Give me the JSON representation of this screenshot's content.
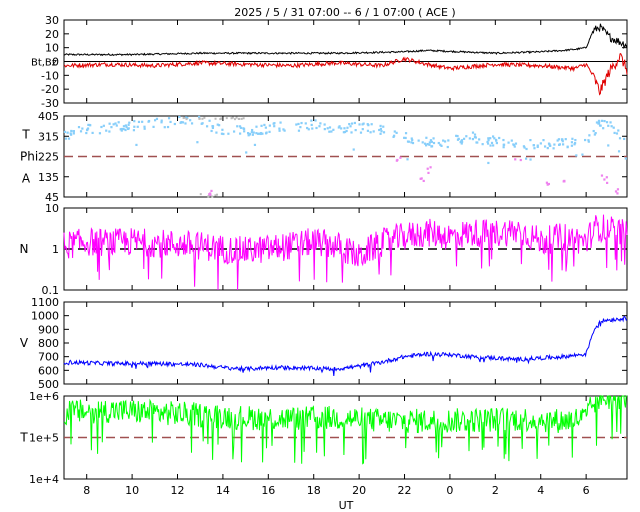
{
  "title": "2025 /  5 / 31   07:00 --   6 /  1   07:00 ( ACE )",
  "x_axis": {
    "label": "UT",
    "tick_labels": [
      "8",
      "10",
      "12",
      "14",
      "16",
      "18",
      "20",
      "22",
      "0",
      "2",
      "4",
      "6"
    ],
    "tick_hours": [
      8,
      10,
      12,
      14,
      16,
      18,
      20,
      22,
      24,
      26,
      28,
      30
    ],
    "range_hours": [
      7,
      31.8
    ]
  },
  "chart_data": [
    {
      "type": "line",
      "panel": "magnetic-field",
      "ylabel": "Bt,Bz",
      "ylim": [
        -30,
        30
      ],
      "y_tick_labels": [
        "30",
        "20",
        "10",
        "0",
        "-10",
        "-20",
        "-30"
      ],
      "y_tick_values": [
        30,
        20,
        10,
        0,
        -10,
        -20,
        -30
      ],
      "reference_line": 0,
      "series": [
        {
          "name": "Bt",
          "color": "#000000",
          "x": [
            7,
            10,
            13,
            16,
            19,
            22,
            23,
            26,
            28,
            29,
            29.6,
            30.0,
            30.3,
            30.6,
            31.0,
            31.5,
            31.8
          ],
          "y": [
            5,
            5,
            6,
            6,
            6,
            7,
            8,
            6,
            7,
            8,
            9,
            10,
            22,
            25,
            18,
            14,
            12
          ]
        },
        {
          "name": "Bz",
          "color": "#e00000",
          "x": [
            7,
            9,
            11,
            13,
            15,
            17,
            19,
            21,
            22,
            23,
            24,
            26,
            28,
            29.5,
            30.0,
            30.3,
            30.6,
            31.0,
            31.5,
            31.8
          ],
          "y": [
            -3,
            -2,
            -3,
            -1,
            -2,
            -3,
            -1,
            -3,
            2,
            -2,
            -5,
            -2,
            -3,
            -5,
            -2,
            -10,
            -22,
            -8,
            4,
            -6
          ]
        }
      ]
    },
    {
      "type": "scatter",
      "panel": "phi-angle",
      "ylabel": [
        "T",
        "Phi",
        "A"
      ],
      "ylim": [
        45,
        405
      ],
      "y_tick_labels": [
        "405",
        "315",
        "225",
        "135",
        "45"
      ],
      "y_tick_values": [
        405,
        315,
        225,
        135,
        45
      ],
      "reference_line": 225,
      "series": [
        {
          "name": "T",
          "color": "#87cefa",
          "x": [
            7,
            8,
            9,
            10,
            11,
            12,
            13,
            14,
            15,
            16,
            17,
            18,
            19,
            20,
            21,
            22,
            23,
            24,
            25,
            26,
            27,
            28,
            29,
            30,
            30.6,
            31.2,
            31.8
          ],
          "y": [
            315,
            345,
            355,
            360,
            370,
            380,
            385,
            335,
            340,
            350,
            360,
            365,
            340,
            355,
            340,
            310,
            290,
            290,
            310,
            290,
            280,
            275,
            285,
            300,
            370,
            360,
            270
          ]
        },
        {
          "name": "A",
          "color": "#ee82ee",
          "x": [
            13.2,
            13.4,
            21.7,
            22.8,
            23.0,
            27.0,
            28.3,
            28.9,
            30.8,
            31.3
          ],
          "y": [
            60,
            65,
            210,
            130,
            160,
            230,
            110,
            95,
            140,
            80
          ]
        }
      ]
    },
    {
      "type": "line",
      "panel": "density",
      "ylabel": "N",
      "scale": "log",
      "ylim": [
        0.1,
        10
      ],
      "y_tick_labels": [
        "10",
        "1",
        "0.1"
      ],
      "y_tick_values": [
        10,
        1,
        0.1
      ],
      "reference_line": 1,
      "series": [
        {
          "name": "N",
          "color": "#ff00ff",
          "x": [
            7,
            8,
            9,
            10,
            11,
            12,
            13,
            14,
            15,
            16,
            17,
            18,
            19,
            20,
            21,
            22,
            23,
            24,
            25,
            26,
            27,
            28,
            29,
            30,
            30.5,
            31,
            31.8
          ],
          "y": [
            1.2,
            1.5,
            1.4,
            1.5,
            1.4,
            1.3,
            1.2,
            1.0,
            0.9,
            1.0,
            1.2,
            1.5,
            1.2,
            0.6,
            1.4,
            2.0,
            2.5,
            2.0,
            2.5,
            2.4,
            2.8,
            1.5,
            2.0,
            1.5,
            3.5,
            3.0,
            2.2
          ]
        }
      ]
    },
    {
      "type": "line",
      "panel": "speed",
      "ylabel": "V",
      "ylim": [
        500,
        1100
      ],
      "y_tick_labels": [
        "1100",
        "1000",
        "900",
        "800",
        "700",
        "600",
        "500"
      ],
      "y_tick_values": [
        1100,
        1000,
        900,
        800,
        700,
        600,
        500
      ],
      "series": [
        {
          "name": "V",
          "color": "#0000ff",
          "x": [
            7,
            9,
            11,
            13,
            14,
            15,
            16,
            17,
            18,
            19,
            20,
            21,
            22,
            23,
            24,
            25,
            26,
            27,
            28,
            29,
            30,
            30.3,
            30.6,
            31,
            31.8
          ],
          "y": [
            660,
            650,
            650,
            640,
            620,
            610,
            620,
            620,
            615,
            610,
            630,
            660,
            700,
            720,
            715,
            700,
            690,
            680,
            690,
            700,
            720,
            880,
            960,
            970,
            980
          ]
        }
      ]
    },
    {
      "type": "line",
      "panel": "temperature",
      "ylabel": "T",
      "scale": "log",
      "ylim": [
        10000,
        1000000
      ],
      "y_tick_labels": [
        "1e+6",
        "1e+5",
        "1e+4"
      ],
      "y_tick_values": [
        1000000,
        100000,
        10000
      ],
      "reference_line": 100000,
      "series": [
        {
          "name": "T",
          "color": "#00ff00",
          "x": [
            7,
            9,
            11,
            13,
            15,
            17,
            19,
            21,
            23,
            25,
            27,
            29,
            30,
            30.3,
            30.6,
            31,
            31.8
          ],
          "y": [
            400000,
            450000,
            400000,
            350000,
            300000,
            280000,
            300000,
            250000,
            250000,
            260000,
            280000,
            250000,
            300000,
            600000,
            900000,
            900000,
            950000
          ]
        }
      ]
    }
  ]
}
